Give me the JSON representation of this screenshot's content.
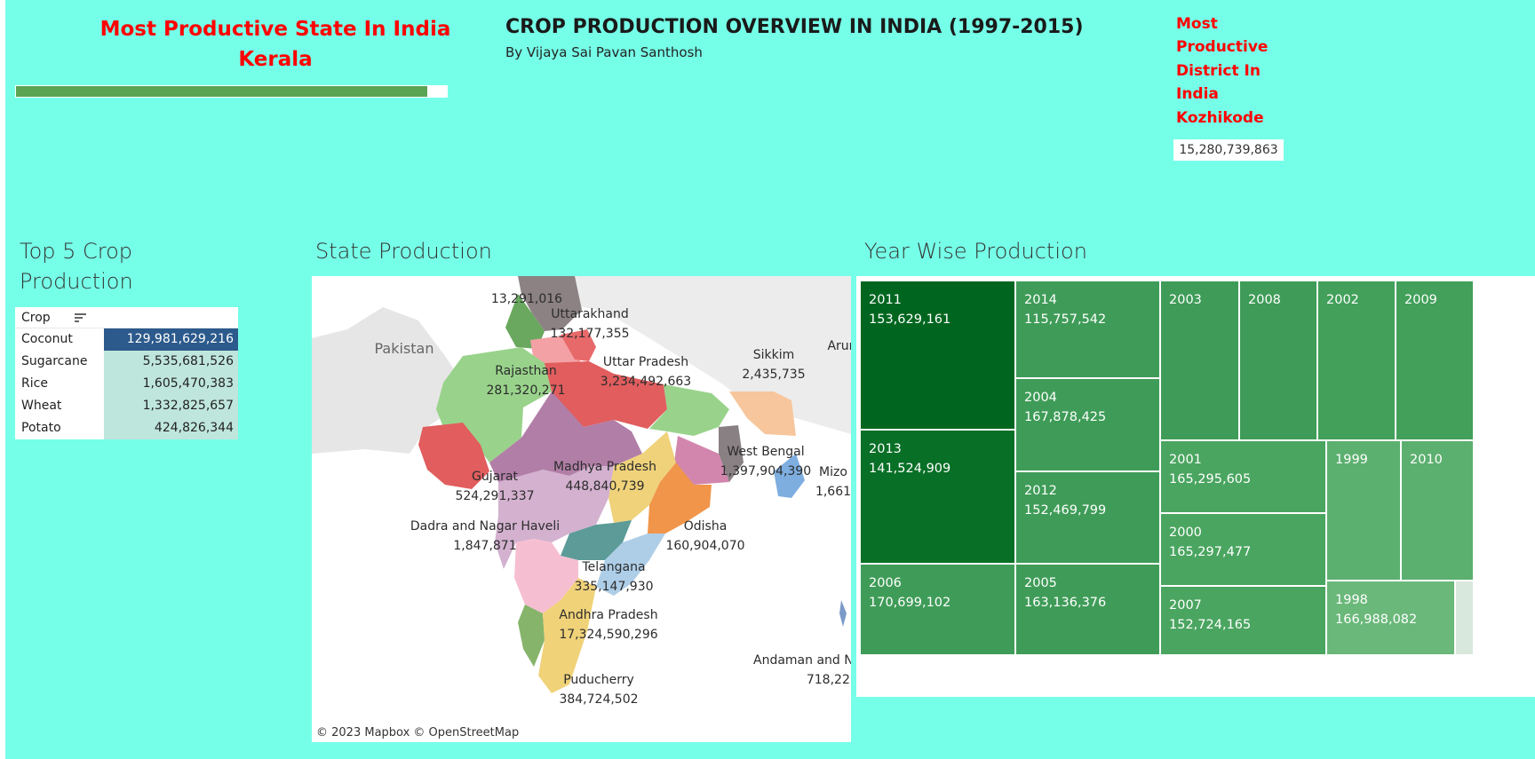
{
  "header": {
    "state_label": "Most Productive State In India",
    "state_name": "Kerala",
    "state_bar_fraction": 0.955,
    "main_title": "CROP PRODUCTION OVERVIEW IN INDIA (1997-2015)",
    "byline": "By Vijaya Sai Pavan Santhosh",
    "district_lines": [
      "Most",
      "Productive",
      "District In",
      "India",
      "Kozhikode"
    ],
    "district_value": "15,280,739,863"
  },
  "sections": {
    "crop_title": "Top 5 Crop Production",
    "map_title": "State Production",
    "year_title": "Year Wise Production"
  },
  "colors": {
    "background": "#76ffe8",
    "title_red": "#ff0000",
    "bar_green": "#5aa454",
    "table_highlight": "#2c5a8c",
    "table_light": "#bfe6dc"
  },
  "chart_data": [
    {
      "type": "table",
      "title": "Top 5 Crop Production",
      "column_header": "Crop",
      "rows": [
        {
          "crop": "Coconut",
          "value": "129,981,629,216"
        },
        {
          "crop": "Sugarcane",
          "value": "5,535,681,526"
        },
        {
          "crop": "Rice",
          "value": "1,605,470,383"
        },
        {
          "crop": "Wheat",
          "value": "1,332,825,657"
        },
        {
          "crop": "Potato",
          "value": "424,826,344"
        }
      ]
    },
    {
      "type": "map",
      "title": "State Production",
      "credit": "© 2023 Mapbox  © OpenStreetMap",
      "country_labels": [
        "Pakistan"
      ],
      "labels": [
        {
          "name": "",
          "value": "13,291,016"
        },
        {
          "name": "Uttarakhand",
          "value": "132,177,355"
        },
        {
          "name": "Rajasthan",
          "value": "281,320,271"
        },
        {
          "name": "Uttar Pradesh",
          "value": "3,234,492,663"
        },
        {
          "name": "Sikkim",
          "value": "2,435,735"
        },
        {
          "name": "Gujarat",
          "value": "524,291,337"
        },
        {
          "name": "Madhya Pradesh",
          "value": "448,840,739"
        },
        {
          "name": "West Bengal",
          "value": "1,397,904,390"
        },
        {
          "name": "Dadra and Nagar Haveli",
          "value": "1,847,871"
        },
        {
          "name": "Odisha",
          "value": "160,904,070"
        },
        {
          "name": "Telangana",
          "value": "335,147,930"
        },
        {
          "name": "Andhra Pradesh",
          "value": "17,324,590,296"
        },
        {
          "name": "Puducherry",
          "value": "384,724,502"
        },
        {
          "name": "Andaman and N",
          "value": "718,22"
        },
        {
          "name": "Mizo",
          "value": "1,661"
        },
        {
          "name": "Arun",
          "value": ""
        }
      ]
    },
    {
      "type": "treemap",
      "title": "Year Wise Production",
      "cells": [
        {
          "year": "2011",
          "value": "153,629,161",
          "shade": "#00661f"
        },
        {
          "year": "2014",
          "value": "115,757,542",
          "shade": "#3f9c58"
        },
        {
          "year": "2003",
          "value": "",
          "shade": "#3f9c58"
        },
        {
          "year": "2008",
          "value": "",
          "shade": "#3f9c58"
        },
        {
          "year": "2002",
          "value": "",
          "shade": "#42a05a"
        },
        {
          "year": "2009",
          "value": "",
          "shade": "#42a05a"
        },
        {
          "year": "2004",
          "value": "167,878,425",
          "shade": "#3f9c58"
        },
        {
          "year": "2013",
          "value": "141,524,909",
          "shade": "#076f26"
        },
        {
          "year": "2012",
          "value": "152,469,799",
          "shade": "#3f9c58"
        },
        {
          "year": "2001",
          "value": "165,295,605",
          "shade": "#4aa560"
        },
        {
          "year": "1999",
          "value": "",
          "shade": "#5cb06f"
        },
        {
          "year": "2010",
          "value": "",
          "shade": "#5cb06f"
        },
        {
          "year": "2000",
          "value": "165,297,477",
          "shade": "#4aa560"
        },
        {
          "year": "2006",
          "value": "170,699,102",
          "shade": "#3f9c58"
        },
        {
          "year": "2005",
          "value": "163,136,376",
          "shade": "#3f9c58"
        },
        {
          "year": "2007",
          "value": "152,724,165",
          "shade": "#4aa560"
        },
        {
          "year": "1998",
          "value": "166,988,082",
          "shade": "#6ab87a"
        },
        {
          "year": "",
          "value": "",
          "shade": "#d8e8dd"
        }
      ]
    }
  ]
}
